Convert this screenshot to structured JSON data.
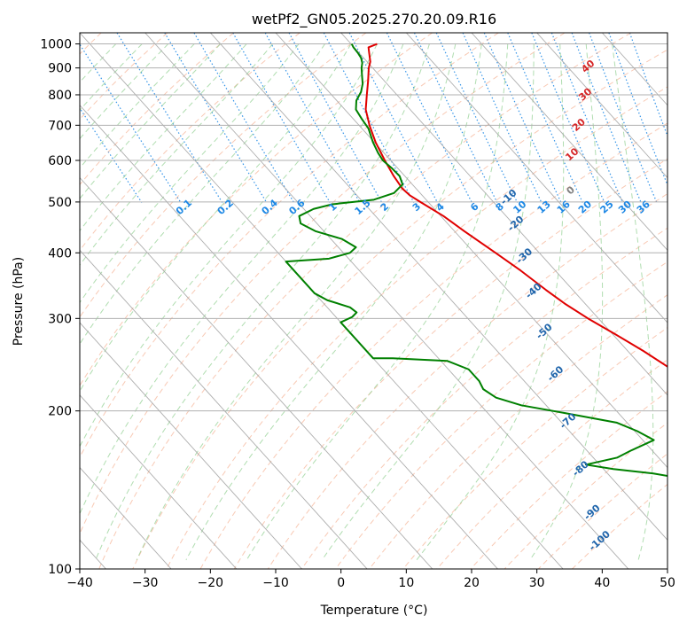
{
  "chart_data": {
    "type": "line",
    "title": "wetPf2_GN05.2025.270.20.09.R16",
    "xlabel": "Temperature (°C)",
    "ylabel": "Pressure (hPa)",
    "xlim": [
      -40,
      50
    ],
    "ylim": [
      1050,
      100
    ],
    "y_scale": "log",
    "grid": true,
    "x_ticks": [
      {
        "value": -40,
        "label": "−40"
      },
      {
        "value": -30,
        "label": "−30"
      },
      {
        "value": -20,
        "label": "−20"
      },
      {
        "value": -10,
        "label": "−10"
      },
      {
        "value": 0,
        "label": "0"
      },
      {
        "value": 10,
        "label": "10"
      },
      {
        "value": 20,
        "label": "20"
      },
      {
        "value": 30,
        "label": "30"
      },
      {
        "value": 40,
        "label": "40"
      },
      {
        "value": 50,
        "label": "50"
      }
    ],
    "y_ticks": [
      {
        "value": 100,
        "label": "100"
      },
      {
        "value": 200,
        "label": "200"
      },
      {
        "value": 300,
        "label": "300"
      },
      {
        "value": 400,
        "label": "400"
      },
      {
        "value": 500,
        "label": "500"
      },
      {
        "value": 600,
        "label": "600"
      },
      {
        "value": 700,
        "label": "700"
      },
      {
        "value": 800,
        "label": "800"
      },
      {
        "value": 900,
        "label": "900"
      },
      {
        "value": 1000,
        "label": "1000"
      }
    ],
    "colors": {
      "temperature": "#e00000",
      "dewpoint": "#008000",
      "isotherm": "#a0a0a0",
      "dry_adiabat": "#f4a582",
      "moist_adiabat": "#8fce8f",
      "mixing_ratio": "#1e88e5",
      "moist_label": "#2166ac",
      "dry_label": "#d62728",
      "zero_label": "#808080"
    },
    "series": [
      {
        "points": [
          [
            1000,
            4.0
          ],
          [
            985,
            2.2
          ],
          [
            960,
            1.5
          ],
          [
            925,
            0.5
          ],
          [
            900,
            -0.6
          ],
          [
            850,
            -2.5
          ],
          [
            800,
            -4.6
          ],
          [
            750,
            -6.8
          ],
          [
            700,
            -8.4
          ],
          [
            650,
            -9.8
          ],
          [
            600,
            -10.9
          ],
          [
            560,
            -11.7
          ],
          [
            530,
            -12.1
          ],
          [
            515,
            -11.9
          ],
          [
            500,
            -11.2
          ],
          [
            470,
            -9.6
          ],
          [
            440,
            -8.5
          ],
          [
            400,
            -6.7
          ],
          [
            370,
            -5.3
          ],
          [
            340,
            -4.1
          ],
          [
            320,
            -3.1
          ],
          [
            300,
            -1.6
          ],
          [
            280,
            0.4
          ],
          [
            260,
            2.4
          ],
          [
            240,
            4.2
          ],
          [
            220,
            6.3
          ],
          [
            200,
            7.8
          ],
          [
            185,
            7.9
          ],
          [
            175,
            8.8
          ],
          [
            165,
            12.2
          ],
          [
            155,
            14.7
          ],
          [
            145,
            16.3
          ],
          [
            135,
            16.7
          ],
          [
            125,
            18.8
          ],
          [
            115,
            21.5
          ],
          [
            108,
            24.5
          ],
          [
            100,
            29.6
          ]
        ]
      },
      {
        "points": [
          [
            1000,
            0.1
          ],
          [
            985,
            -0.1
          ],
          [
            960,
            -0.2
          ],
          [
            940,
            -0.4
          ],
          [
            920,
            -0.9
          ],
          [
            900,
            -1.7
          ],
          [
            870,
            -2.7
          ],
          [
            840,
            -3.7
          ],
          [
            810,
            -5.1
          ],
          [
            780,
            -7.0
          ],
          [
            750,
            -8.3
          ],
          [
            720,
            -8.7
          ],
          [
            690,
            -9.0
          ],
          [
            650,
            -10.2
          ],
          [
            620,
            -10.9
          ],
          [
            600,
            -11.2
          ],
          [
            580,
            -10.9
          ],
          [
            560,
            -10.8
          ],
          [
            540,
            -11.5
          ],
          [
            520,
            -14.0
          ],
          [
            505,
            -18.0
          ],
          [
            495,
            -25.0
          ],
          [
            485,
            -28.5
          ],
          [
            470,
            -31.7
          ],
          [
            455,
            -32.5
          ],
          [
            440,
            -31.3
          ],
          [
            425,
            -28.3
          ],
          [
            410,
            -27.3
          ],
          [
            400,
            -29.0
          ],
          [
            390,
            -33.0
          ],
          [
            385,
            -40.0
          ],
          [
            335,
            -40.0
          ],
          [
            325,
            -39.0
          ],
          [
            315,
            -36.5
          ],
          [
            308,
            -36.2
          ],
          [
            302,
            -37.5
          ],
          [
            295,
            -40.0
          ],
          [
            252,
            -40.0
          ],
          [
            252,
            -37.0
          ],
          [
            249,
            -29.0
          ],
          [
            240,
            -26.9
          ],
          [
            228,
            -26.9
          ],
          [
            220,
            -27.4
          ],
          [
            212,
            -26.6
          ],
          [
            205,
            -23.8
          ],
          [
            198,
            -18.1
          ],
          [
            190,
            -11.6
          ],
          [
            183,
            -9.6
          ],
          [
            176,
            -8.3
          ],
          [
            168,
            -13.3
          ],
          [
            163,
            -16.3
          ],
          [
            158,
            -22.1
          ],
          [
            155,
            -18.5
          ],
          [
            152,
            -13.0
          ],
          [
            148,
            -8.3
          ],
          [
            143,
            -6.2
          ],
          [
            136,
            -5.6
          ],
          [
            128,
            -5.1
          ],
          [
            122,
            -4.8
          ],
          [
            116,
            -3.8
          ],
          [
            110,
            -2.2
          ],
          [
            104,
            -1.5
          ],
          [
            100,
            -1.0
          ]
        ]
      }
    ],
    "moist_adiabat_labels": [
      {
        "text": "-100",
        "theta": -100
      },
      {
        "text": "-90",
        "theta": -90
      },
      {
        "text": "-80",
        "theta": -80
      },
      {
        "text": "-70",
        "theta": -70
      },
      {
        "text": "-60",
        "theta": -60
      },
      {
        "text": "-50",
        "theta": -50
      },
      {
        "text": "-40",
        "theta": -40
      },
      {
        "text": "-30",
        "theta": -30
      },
      {
        "text": "-20",
        "theta": -20
      },
      {
        "text": "-10",
        "theta": -10
      }
    ],
    "zero_label": {
      "text": "0",
      "theta": 0
    },
    "dry_adiabat_labels": [
      {
        "text": "10",
        "theta": 10
      },
      {
        "text": "20",
        "theta": 20
      },
      {
        "text": "30",
        "theta": 30
      },
      {
        "text": "40",
        "theta": 40
      }
    ],
    "mixing_ratio_labels": [
      {
        "text": "0.1",
        "w": 0.1
      },
      {
        "text": "0.2",
        "w": 0.2
      },
      {
        "text": "0.4",
        "w": 0.4
      },
      {
        "text": "0.6",
        "w": 0.6
      },
      {
        "text": "1",
        "w": 1
      },
      {
        "text": "1.5",
        "w": 1.5
      },
      {
        "text": "2",
        "w": 2
      },
      {
        "text": "3",
        "w": 3
      },
      {
        "text": "4",
        "w": 4
      },
      {
        "text": "6",
        "w": 6
      },
      {
        "text": "8",
        "w": 8
      },
      {
        "text": "10",
        "w": 10
      },
      {
        "text": "13",
        "w": 13
      },
      {
        "text": "16",
        "w": 16
      },
      {
        "text": "20",
        "w": 20
      },
      {
        "text": "25",
        "w": 25
      },
      {
        "text": "30",
        "w": 30
      },
      {
        "text": "36",
        "w": 36
      }
    ]
  }
}
